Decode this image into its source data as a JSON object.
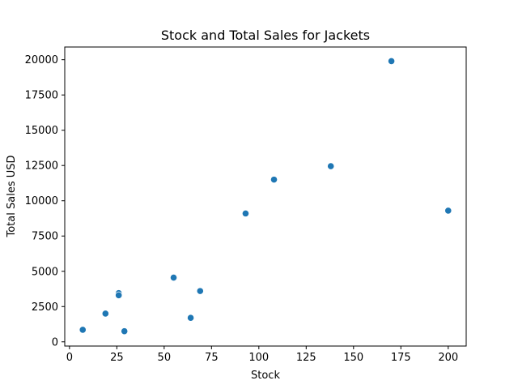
{
  "chart_data": {
    "type": "scatter",
    "title": "Stock and Total Sales for Jackets",
    "xlabel": "Stock",
    "ylabel": "Total Sales USD",
    "xlim": [
      -2.5,
      209.5
    ],
    "ylim": [
      -300,
      20900
    ],
    "xticks": [
      0,
      25,
      50,
      75,
      100,
      125,
      150,
      175,
      200
    ],
    "yticks": [
      0,
      2500,
      5000,
      7500,
      10000,
      12500,
      15000,
      17500,
      20000
    ],
    "grid": false,
    "color": "#1f77b4",
    "points": [
      {
        "x": 7,
        "y": 850
      },
      {
        "x": 19,
        "y": 2000
      },
      {
        "x": 26,
        "y": 3450
      },
      {
        "x": 26,
        "y": 3300
      },
      {
        "x": 29,
        "y": 750
      },
      {
        "x": 55,
        "y": 4550
      },
      {
        "x": 64,
        "y": 1700
      },
      {
        "x": 69,
        "y": 3600
      },
      {
        "x": 93,
        "y": 9100
      },
      {
        "x": 108,
        "y": 11500
      },
      {
        "x": 138,
        "y": 12450
      },
      {
        "x": 170,
        "y": 19900
      },
      {
        "x": 200,
        "y": 9300
      }
    ]
  }
}
